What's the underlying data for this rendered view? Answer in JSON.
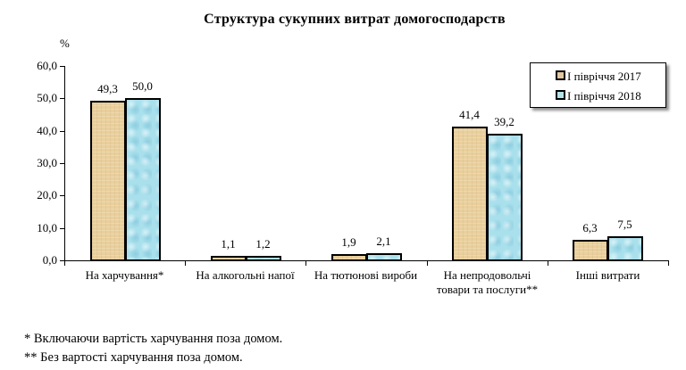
{
  "chart_data": {
    "type": "bar",
    "title": "Структура сукупних витрат домогосподарств",
    "xlabel": "",
    "ylabel": "%",
    "ylim": [
      0,
      60
    ],
    "yticks": [
      "0,0",
      "10,0",
      "20,0",
      "30,0",
      "40,0",
      "50,0",
      "60,0"
    ],
    "grid": false,
    "legend_position": "top-right",
    "categories": [
      "На харчування*",
      "На алкогольні напої",
      "На тютюнові вироби",
      "На непродовольчі товари та послуги**",
      "Інші витрати"
    ],
    "series": [
      {
        "name": "І півріччя 2017",
        "color": "#e9cf9c",
        "values": [
          49.3,
          1.1,
          1.9,
          41.4,
          6.3
        ],
        "labels": [
          "49,3",
          "1,1",
          "1,9",
          "41,4",
          "6,3"
        ]
      },
      {
        "name": "І півріччя 2018",
        "color": "#a9e0ec",
        "values": [
          50.0,
          1.2,
          2.1,
          39.2,
          7.5
        ],
        "labels": [
          "50,0",
          "1,2",
          "2,1",
          "39,2",
          "7,5"
        ]
      }
    ]
  },
  "chart": {
    "title": "Структура сукупних витрат домогосподарств",
    "unit": "%",
    "category_lines": [
      [
        "На харчування*"
      ],
      [
        "На алкогольні напої"
      ],
      [
        "На тютюнові  вироби"
      ],
      [
        "На непродовольчі",
        "товари та послуги**"
      ],
      [
        "Інші витрати"
      ]
    ],
    "legend": [
      "І півріччя  2017",
      "І півріччя  2018"
    ]
  },
  "footnotes": [
    "* Включаючи вартість харчування поза домом.",
    "** Без вартості харчування поза домом."
  ]
}
